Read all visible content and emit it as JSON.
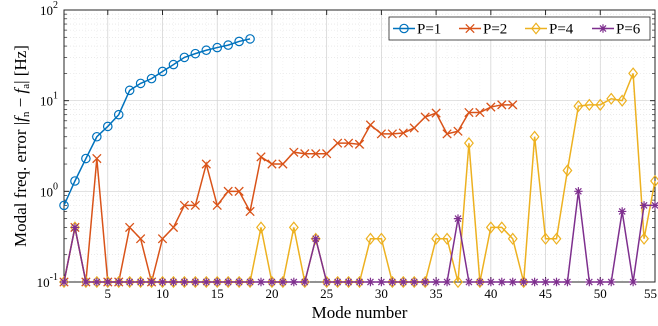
{
  "chart_data": {
    "type": "line",
    "xlabel": "Mode number",
    "ylabel": "Modal freq. error |f_n − f_a| [Hz]",
    "ylabel_parts": {
      "prefix": "Modal freq. error |",
      "f1": "f",
      "sub1": "n",
      "minus": " − ",
      "f2": "f",
      "sub2": "a",
      "suffix": "| [Hz]"
    },
    "xlim": [
      1,
      55
    ],
    "ylim": [
      0.1,
      100
    ],
    "yscale": "log",
    "grid": true,
    "minor_grid": true,
    "legend_position": "top-right",
    "x_ticks": [
      {
        "value": 5,
        "label": "5"
      },
      {
        "value": 10,
        "label": "10"
      },
      {
        "value": 15,
        "label": "15"
      },
      {
        "value": 20,
        "label": "20"
      },
      {
        "value": 25,
        "label": "25"
      },
      {
        "value": 30,
        "label": "30"
      },
      {
        "value": 35,
        "label": "35"
      },
      {
        "value": 40,
        "label": "40"
      },
      {
        "value": 45,
        "label": "45"
      },
      {
        "value": 50,
        "label": "50"
      },
      {
        "value": 55,
        "label": "55"
      }
    ],
    "y_ticks": [
      {
        "value": 0.1,
        "base": "10",
        "exp": "-1"
      },
      {
        "value": 1,
        "base": "10",
        "exp": "0"
      },
      {
        "value": 10,
        "base": "10",
        "exp": "1"
      },
      {
        "value": 100,
        "base": "10",
        "exp": "2"
      }
    ],
    "series": [
      {
        "name": "P=1",
        "color": "#0072BD",
        "marker": "circle",
        "x": [
          1,
          2,
          3,
          4,
          5,
          6,
          7,
          8,
          9,
          10,
          11,
          12,
          13,
          14,
          15,
          16,
          17,
          18
        ],
        "y": [
          0.7,
          1.3,
          2.3,
          4.0,
          5.2,
          7.0,
          13.0,
          15.5,
          17.5,
          21.0,
          25.0,
          30.0,
          33.0,
          36.0,
          38.5,
          41.0,
          45.0,
          48.0
        ]
      },
      {
        "name": "P=2",
        "color": "#D95319",
        "marker": "x",
        "x": [
          1,
          2,
          3,
          4,
          5,
          6,
          7,
          8,
          9,
          10,
          11,
          12,
          13,
          14,
          15,
          16,
          17,
          18,
          19,
          20,
          21,
          22,
          23,
          24,
          25,
          26,
          27,
          28,
          29,
          30,
          31,
          32,
          33,
          34,
          35,
          36,
          37,
          38,
          39,
          40,
          41,
          42
        ],
        "y": [
          0.1,
          0.4,
          0.1,
          2.3,
          0.1,
          0.1,
          0.4,
          0.3,
          0.1,
          0.3,
          0.4,
          0.7,
          0.7,
          2.0,
          0.7,
          1.0,
          1.0,
          0.6,
          2.4,
          2.0,
          2.0,
          2.7,
          2.6,
          2.6,
          2.6,
          3.4,
          3.4,
          3.3,
          5.4,
          4.3,
          4.3,
          4.4,
          5.0,
          6.6,
          7.3,
          4.3,
          4.6,
          7.4,
          7.4,
          8.5,
          9.0,
          9.0
        ]
      },
      {
        "name": "P=4",
        "color": "#EDB120",
        "marker": "diamond",
        "x": [
          1,
          2,
          3,
          4,
          5,
          6,
          7,
          8,
          9,
          10,
          11,
          12,
          13,
          14,
          15,
          16,
          17,
          18,
          19,
          20,
          21,
          22,
          23,
          24,
          25,
          26,
          27,
          28,
          29,
          30,
          31,
          32,
          33,
          34,
          35,
          36,
          37,
          38,
          39,
          40,
          41,
          42,
          43,
          44,
          45,
          46,
          47,
          48,
          49,
          50,
          51,
          52,
          53,
          54,
          55
        ],
        "y": [
          0.1,
          0.4,
          0.1,
          0.1,
          0.1,
          0.1,
          0.1,
          0.1,
          0.1,
          0.1,
          0.1,
          0.1,
          0.1,
          0.1,
          0.1,
          0.1,
          0.1,
          0.1,
          0.4,
          0.1,
          0.1,
          0.4,
          0.1,
          0.3,
          0.1,
          0.1,
          0.1,
          0.1,
          0.3,
          0.3,
          0.1,
          0.1,
          0.1,
          0.1,
          0.3,
          0.3,
          0.1,
          3.4,
          0.1,
          0.4,
          0.4,
          0.3,
          0.1,
          4.0,
          0.3,
          0.3,
          1.7,
          8.7,
          9.0,
          9.0,
          10.5,
          10.0,
          20.0,
          0.3,
          1.3
        ]
      },
      {
        "name": "P=6",
        "color": "#7E2F8E",
        "marker": "asterisk",
        "x": [
          1,
          2,
          3,
          4,
          5,
          6,
          7,
          8,
          9,
          10,
          11,
          12,
          13,
          14,
          15,
          16,
          17,
          18,
          19,
          20,
          21,
          22,
          23,
          24,
          25,
          26,
          27,
          28,
          29,
          30,
          31,
          32,
          33,
          34,
          35,
          36,
          37,
          38,
          39,
          40,
          41,
          42,
          43,
          44,
          45,
          46,
          47,
          48,
          49,
          50,
          51,
          52,
          53,
          54,
          55
        ],
        "y": [
          0.1,
          0.4,
          0.1,
          0.1,
          0.1,
          0.1,
          0.1,
          0.1,
          0.1,
          0.1,
          0.1,
          0.1,
          0.1,
          0.1,
          0.1,
          0.1,
          0.1,
          0.1,
          0.1,
          0.1,
          0.1,
          0.1,
          0.1,
          0.3,
          0.1,
          0.1,
          0.1,
          0.1,
          0.1,
          0.1,
          0.1,
          0.1,
          0.1,
          0.1,
          0.1,
          0.1,
          0.5,
          0.1,
          0.1,
          0.1,
          0.1,
          0.1,
          0.1,
          0.1,
          0.1,
          0.1,
          0.1,
          1.0,
          0.1,
          0.1,
          0.1,
          0.6,
          0.1,
          0.7,
          0.7
        ]
      }
    ]
  }
}
